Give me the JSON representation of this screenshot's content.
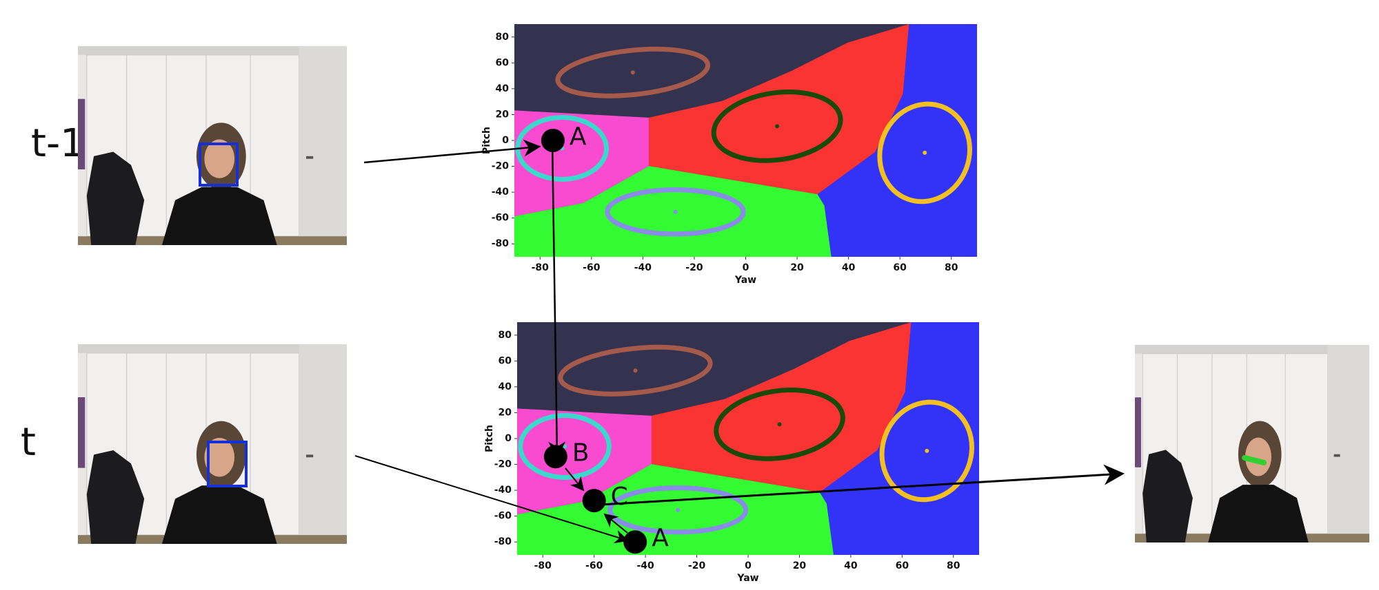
{
  "time_labels": [
    "t-1",
    "t"
  ],
  "chart_data": [
    {
      "type": "scatter",
      "xlabel": "Yaw",
      "ylabel": "Pitch",
      "xlim": [
        -90,
        90
      ],
      "ylim": [
        -90,
        90
      ],
      "xticks": [
        -80,
        -60,
        -40,
        -20,
        0,
        20,
        40,
        60,
        80
      ],
      "yticks": [
        -80,
        -60,
        -40,
        -20,
        0,
        20,
        40,
        60,
        80
      ],
      "x": [
        -75
      ],
      "y": [
        0
      ],
      "point_labels": [
        "A"
      ]
    },
    {
      "type": "scatter",
      "xlabel": "Yaw",
      "ylabel": "Pitch",
      "xlim": [
        -90,
        90
      ],
      "ylim": [
        -90,
        90
      ],
      "xticks": [
        -80,
        -60,
        -40,
        -20,
        0,
        20,
        40,
        60,
        80
      ],
      "yticks": [
        -80,
        -60,
        -40,
        -20,
        0,
        20,
        40,
        60,
        80
      ],
      "x": [
        -75,
        -60,
        -44
      ],
      "y": [
        -14,
        -48,
        -80
      ],
      "point_labels": [
        "B",
        "C",
        "A"
      ]
    }
  ]
}
